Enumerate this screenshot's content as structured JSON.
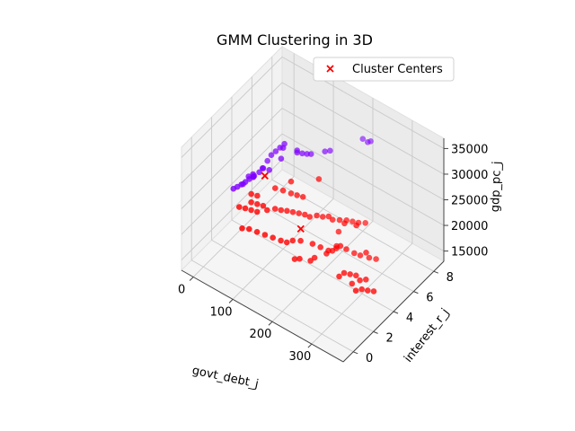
{
  "chart_data": {
    "type": "scatter",
    "projection": "3d",
    "title": "GMM Clustering in 3D",
    "xlabel": "govt_debt_j",
    "ylabel": "interest_r_j",
    "zlabel": "gdp_pc_j",
    "xticks": [
      "0",
      "100",
      "200",
      "300"
    ],
    "yticks": [
      "0",
      "2",
      "4",
      "6",
      "8"
    ],
    "zticks": [
      "15000",
      "20000",
      "25000",
      "30000",
      "35000"
    ],
    "xlim": [
      -30,
      380
    ],
    "ylim": [
      -1,
      9
    ],
    "zlim": [
      13000,
      37000
    ],
    "grid": true,
    "legend_position": "upper right",
    "legend": [
      {
        "label": "Cluster Centers",
        "marker": "x",
        "color": "#ff0000"
      }
    ],
    "colors": {
      "cluster_a": "#7f00ff",
      "cluster_b": "#ff0000",
      "centers": "#ff0000"
    },
    "series": [
      {
        "cluster": 0,
        "color": "#7f00ff",
        "points": [
          [
            20,
            2.2,
            24800
          ],
          [
            25,
            2.4,
            25000
          ],
          [
            30,
            2.6,
            25300
          ],
          [
            35,
            2.8,
            25600
          ],
          [
            28,
            3.4,
            25200
          ],
          [
            34,
            3.6,
            25500
          ],
          [
            40,
            3.0,
            26000
          ],
          [
            45,
            3.2,
            26300
          ],
          [
            50,
            3.0,
            26800
          ],
          [
            55,
            3.4,
            27200
          ],
          [
            60,
            3.6,
            27800
          ],
          [
            48,
            4.0,
            26500
          ],
          [
            60,
            4.4,
            28800
          ],
          [
            66,
            4.6,
            29400
          ],
          [
            72,
            4.8,
            30000
          ],
          [
            78,
            5.0,
            30600
          ],
          [
            85,
            4.6,
            30900
          ],
          [
            90,
            4.2,
            29800
          ],
          [
            70,
            3.8,
            27500
          ],
          [
            40,
            4.8,
            26000
          ],
          [
            105,
            5.2,
            30100
          ],
          [
            110,
            5.0,
            30300
          ],
          [
            118,
            5.2,
            30100
          ],
          [
            125,
            5.4,
            29900
          ],
          [
            130,
            5.6,
            29700
          ],
          [
            150,
            6.2,
            29900
          ],
          [
            158,
            6.4,
            30000
          ],
          [
            200,
            8.0,
            31000
          ],
          [
            210,
            8.1,
            30600
          ],
          [
            215,
            8.2,
            30800
          ],
          [
            24,
            3.0,
            24300
          ],
          [
            32,
            3.8,
            24700
          ]
        ]
      },
      {
        "cluster": 1,
        "color": "#ff0000",
        "points": [
          [
            40,
            2.0,
            22500
          ],
          [
            50,
            2.2,
            22300
          ],
          [
            60,
            2.4,
            22000
          ],
          [
            70,
            2.6,
            21700
          ],
          [
            55,
            2.6,
            22900
          ],
          [
            65,
            2.8,
            22600
          ],
          [
            75,
            3.0,
            22300
          ],
          [
            85,
            3.0,
            21900
          ],
          [
            45,
            3.0,
            23300
          ],
          [
            55,
            3.2,
            23000
          ],
          [
            95,
            3.4,
            21800
          ],
          [
            105,
            3.6,
            21600
          ],
          [
            115,
            3.8,
            21500
          ],
          [
            125,
            4.0,
            21300
          ],
          [
            135,
            4.2,
            21100
          ],
          [
            145,
            4.4,
            20900
          ],
          [
            155,
            4.5,
            20700
          ],
          [
            165,
            4.8,
            20800
          ],
          [
            175,
            5.0,
            20600
          ],
          [
            185,
            5.2,
            20700
          ],
          [
            195,
            5.2,
            20500
          ],
          [
            205,
            5.5,
            20300
          ],
          [
            215,
            5.8,
            20100
          ],
          [
            225,
            6.0,
            19900
          ],
          [
            235,
            6.2,
            19700
          ],
          [
            245,
            6.5,
            19500
          ],
          [
            80,
            4.0,
            24000
          ],
          [
            95,
            4.2,
            23800
          ],
          [
            110,
            4.4,
            23500
          ],
          [
            120,
            4.6,
            23200
          ],
          [
            130,
            4.8,
            22900
          ],
          [
            150,
            5.6,
            25700
          ],
          [
            100,
            4.8,
            24600
          ],
          [
            60,
            1.5,
            20200
          ],
          [
            70,
            1.8,
            19900
          ],
          [
            85,
            2.0,
            19600
          ],
          [
            100,
            2.2,
            19300
          ],
          [
            115,
            2.4,
            19000
          ],
          [
            130,
            2.6,
            18700
          ],
          [
            140,
            2.8,
            18400
          ],
          [
            150,
            3.0,
            18800
          ],
          [
            165,
            3.2,
            19000
          ],
          [
            185,
            3.6,
            18500
          ],
          [
            200,
            3.8,
            18100
          ],
          [
            215,
            4.0,
            17700
          ],
          [
            220,
            4.2,
            17500
          ],
          [
            225,
            4.4,
            17800
          ],
          [
            230,
            4.6,
            18100
          ],
          [
            240,
            4.8,
            17500
          ],
          [
            255,
            5.0,
            17000
          ],
          [
            265,
            5.2,
            16600
          ],
          [
            280,
            5.5,
            16200
          ],
          [
            290,
            5.8,
            15800
          ],
          [
            210,
            5.0,
            16400
          ],
          [
            200,
            5.6,
            17600
          ],
          [
            205,
            4.2,
            16300
          ],
          [
            190,
            3.2,
            16200
          ],
          [
            195,
            3.4,
            16600
          ],
          [
            160,
            2.8,
            16000
          ],
          [
            170,
            2.9,
            16300
          ],
          [
            260,
            3.3,
            16000
          ],
          [
            265,
            3.6,
            16300
          ],
          [
            275,
            3.8,
            16100
          ],
          [
            285,
            4.0,
            15900
          ],
          [
            290,
            3.4,
            15700
          ],
          [
            300,
            3.8,
            16000
          ],
          [
            310,
            4.0,
            16200
          ],
          [
            310,
            3.0,
            16000
          ],
          [
            320,
            3.2,
            16300
          ],
          [
            330,
            3.4,
            16100
          ],
          [
            340,
            3.6,
            16000
          ],
          [
            285,
            5.0,
            18400
          ],
          [
            225,
            5.2,
            21100
          ],
          [
            245,
            5.6,
            20800
          ]
        ]
      }
    ],
    "centers": [
      [
        64,
        3.6,
        26500
      ],
      [
        150,
        3.8,
        19500
      ]
    ]
  }
}
